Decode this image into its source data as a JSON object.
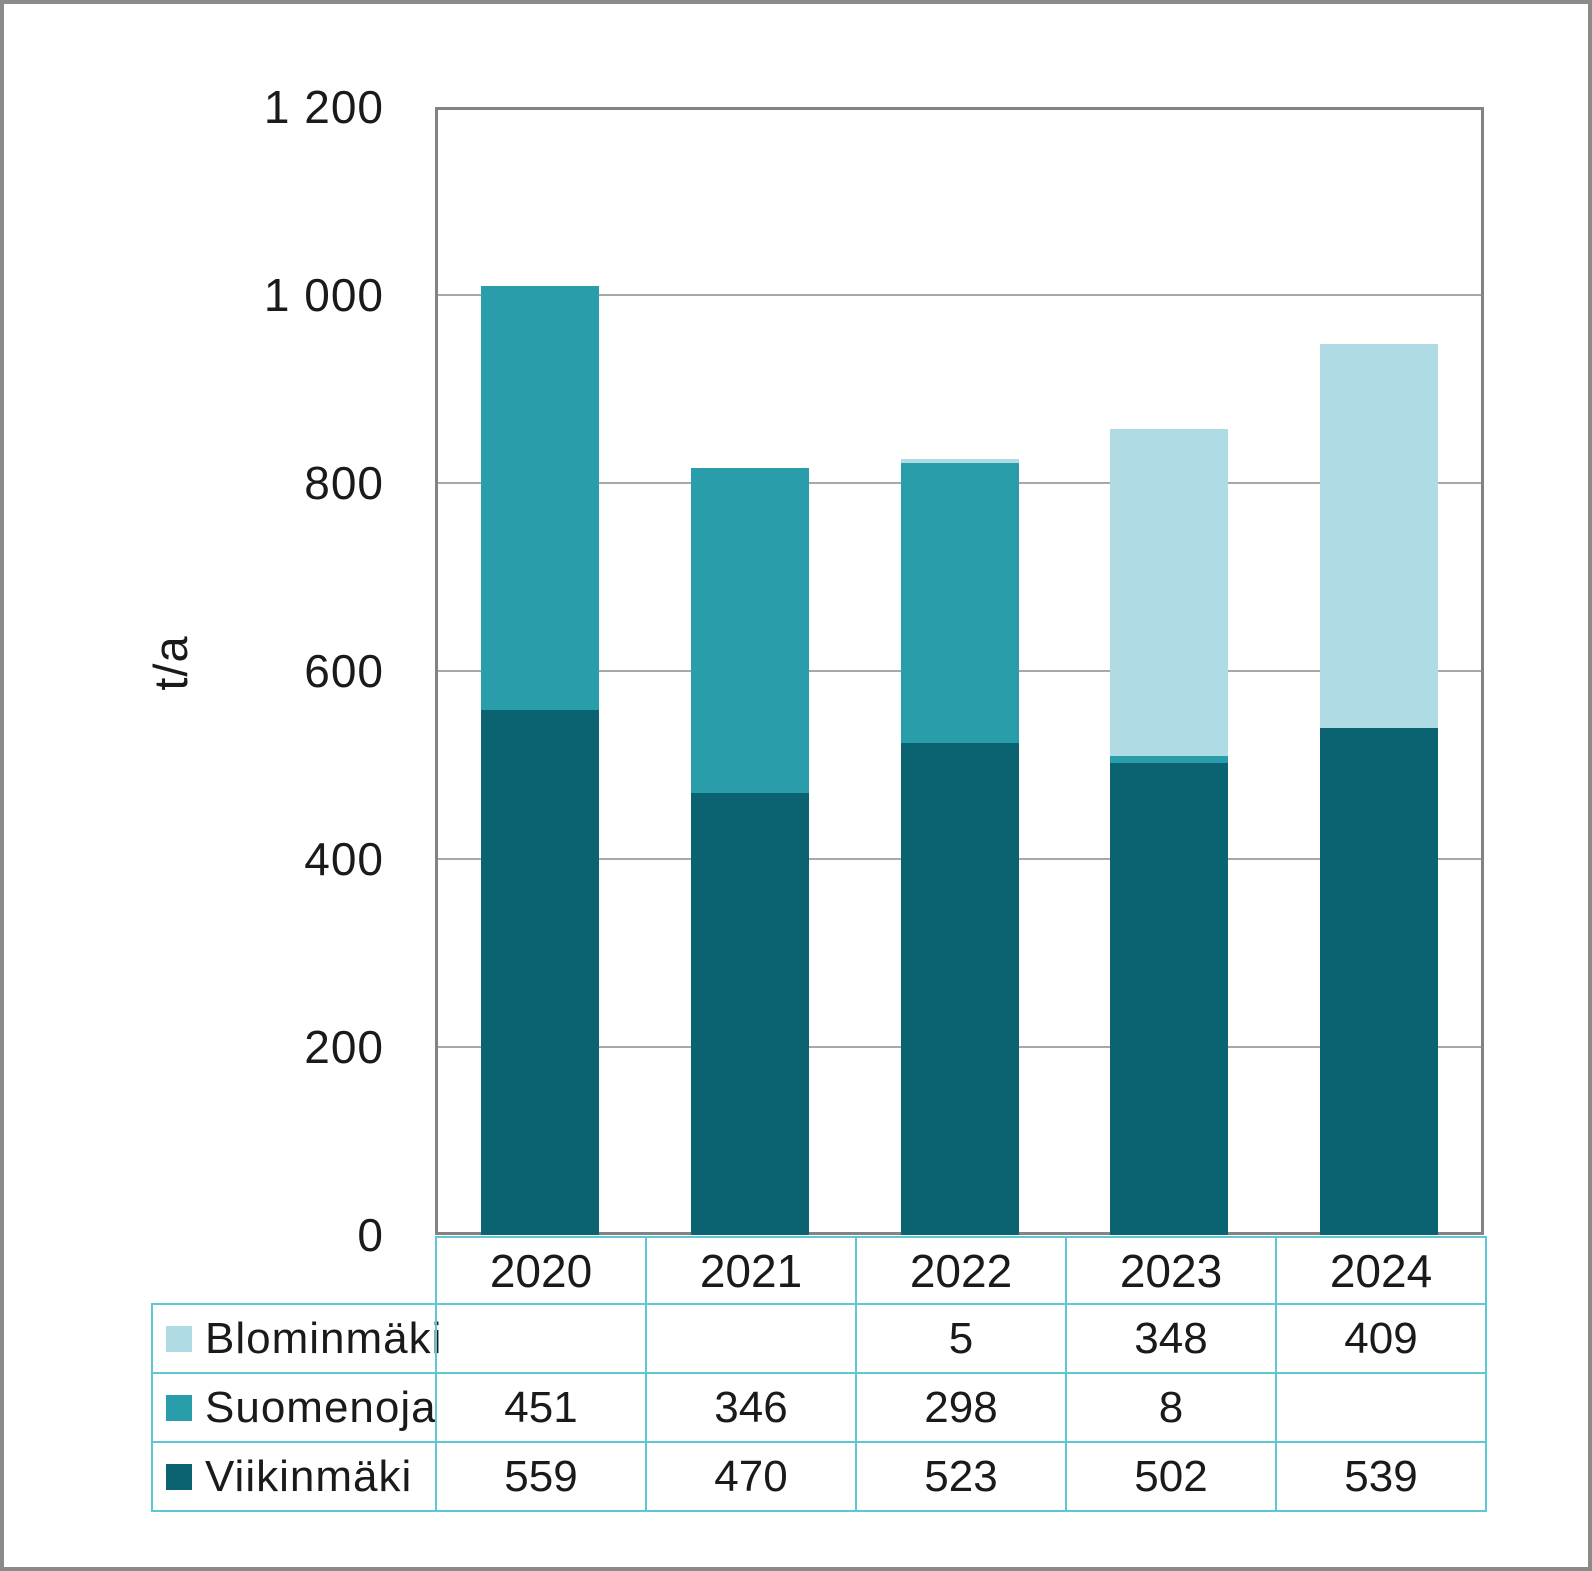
{
  "chart_data": {
    "type": "bar",
    "stacked": true,
    "title": "",
    "xlabel": "",
    "ylabel": "t/a",
    "ylim": [
      0,
      1200
    ],
    "ytick_interval": 200,
    "yticks": [
      {
        "label": "0",
        "value": 0
      },
      {
        "label": "200",
        "value": 200
      },
      {
        "label": "400",
        "value": 400
      },
      {
        "label": "600",
        "value": 600
      },
      {
        "label": "800",
        "value": 800
      },
      {
        "label": "1 000",
        "value": 1000
      },
      {
        "label": "1 200",
        "value": 1200
      }
    ],
    "categories": [
      "2020",
      "2021",
      "2022",
      "2023",
      "2024"
    ],
    "series": [
      {
        "name": "Blominmäki",
        "color": "#aedbe4",
        "values": [
          0,
          0,
          5,
          348,
          409
        ]
      },
      {
        "name": "Suomenoja",
        "color": "#2a9dab",
        "values": [
          451,
          346,
          298,
          8,
          0
        ]
      },
      {
        "name": "Viikinmäki",
        "color": "#0b6270",
        "values": [
          559,
          470,
          523,
          502,
          539
        ]
      }
    ],
    "grid": "horizontal-gray-lines",
    "legend_position": "table-below-chart"
  },
  "table": {
    "years": [
      "2020",
      "2021",
      "2022",
      "2023",
      "2024"
    ],
    "rows": [
      {
        "label": "Blominmäki",
        "values": [
          "",
          "",
          "5",
          "348",
          "409"
        ]
      },
      {
        "label": "Suomenoja",
        "values": [
          "451",
          "346",
          "298",
          "8",
          ""
        ]
      },
      {
        "label": "Viikinmäki",
        "values": [
          "559",
          "470",
          "523",
          "502",
          "539"
        ]
      }
    ]
  },
  "colors": {
    "blominmaki": "#aedbe4",
    "suomenoja": "#2a9dab",
    "viikinmaki": "#0b6270",
    "table_border": "#5ec6d5",
    "gridline": "#a8a8a8",
    "plot_border": "#838383",
    "outer_frame": "#8b8b89",
    "text": "#1a1a1a"
  }
}
